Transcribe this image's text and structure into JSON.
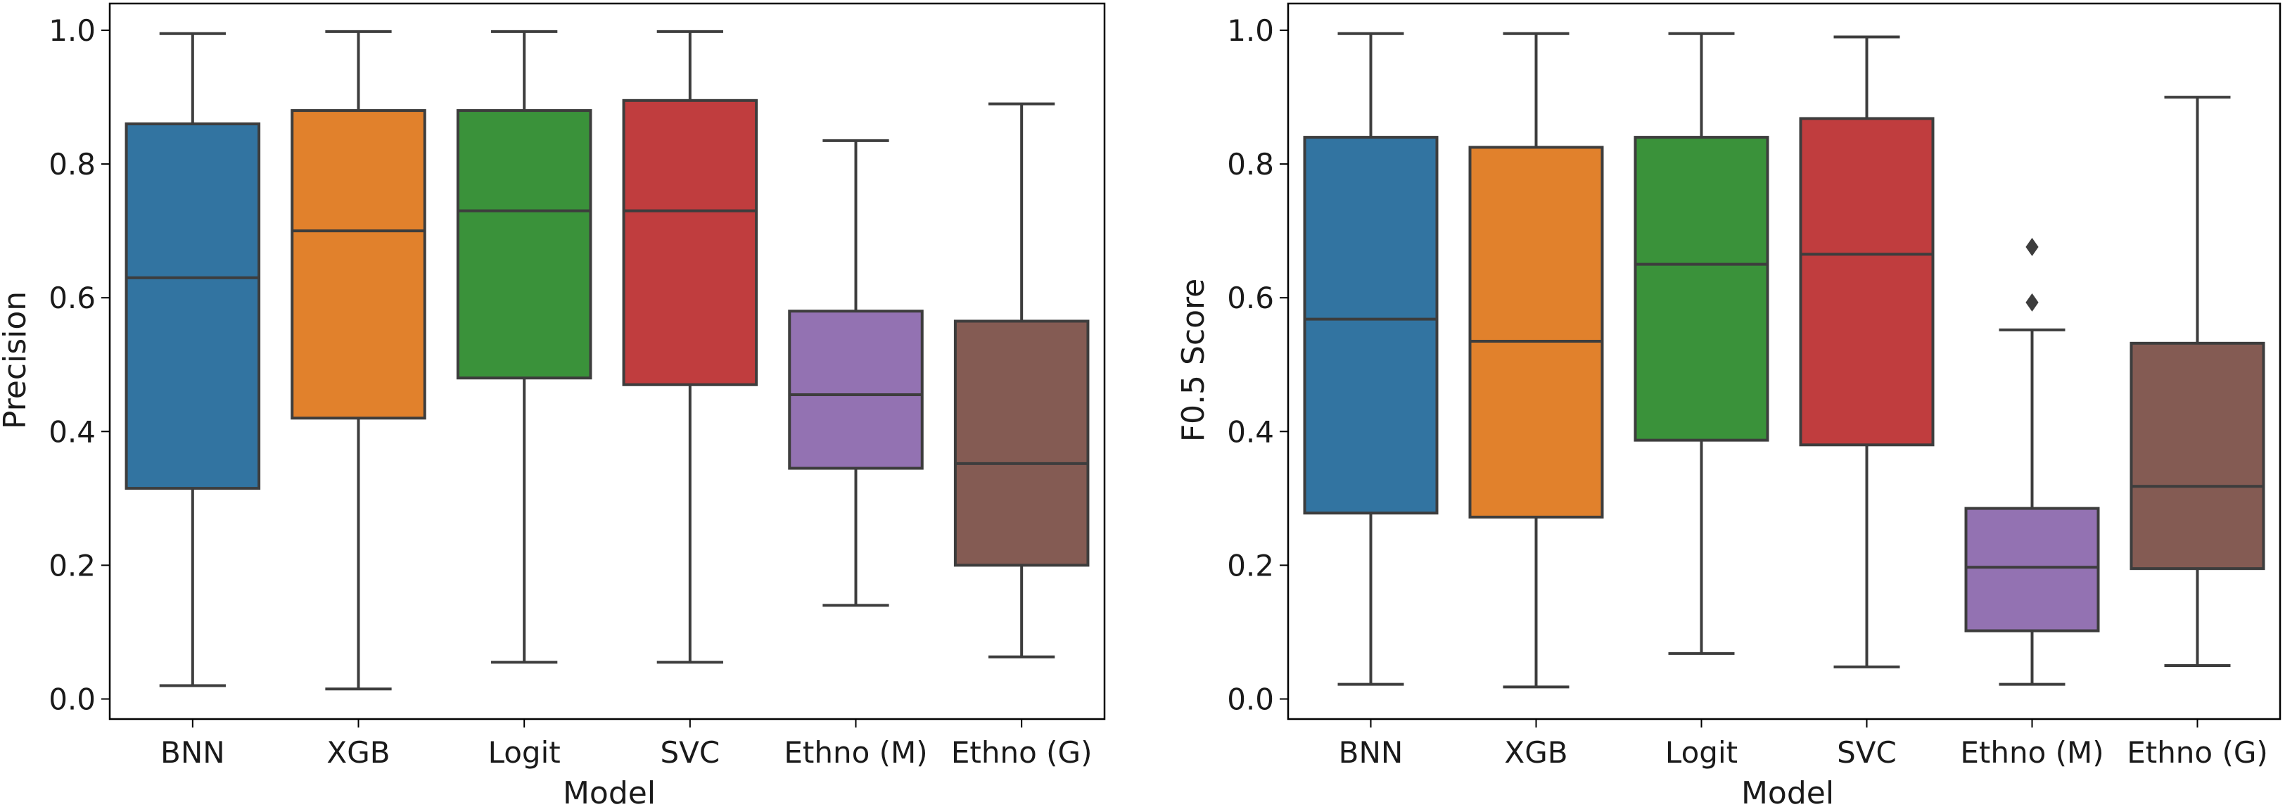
{
  "chart_data": [
    {
      "type": "boxplot",
      "xlabel": "Model",
      "ylabel": "Precision",
      "ylim": [
        -0.03,
        1.04
      ],
      "yticks": [
        "0.0",
        "0.2",
        "0.4",
        "0.6",
        "0.8",
        "1.0"
      ],
      "categories": [
        "BNN",
        "XGB",
        "Logit",
        "SVC",
        "Ethno (M)",
        "Ethno (G)"
      ],
      "colors": [
        "#3274a1",
        "#e1812c",
        "#3a923a",
        "#c03d3e",
        "#9372b2",
        "#845b53"
      ],
      "boxes": [
        {
          "whislo": 0.02,
          "q1": 0.315,
          "med": 0.63,
          "q3": 0.86,
          "whishi": 0.995,
          "fliers": []
        },
        {
          "whislo": 0.015,
          "q1": 0.42,
          "med": 0.7,
          "q3": 0.88,
          "whishi": 0.998,
          "fliers": []
        },
        {
          "whislo": 0.055,
          "q1": 0.48,
          "med": 0.73,
          "q3": 0.88,
          "whishi": 0.998,
          "fliers": []
        },
        {
          "whislo": 0.055,
          "q1": 0.47,
          "med": 0.73,
          "q3": 0.895,
          "whishi": 0.998,
          "fliers": []
        },
        {
          "whislo": 0.14,
          "q1": 0.345,
          "med": 0.455,
          "q3": 0.58,
          "whishi": 0.835,
          "fliers": []
        },
        {
          "whislo": 0.063,
          "q1": 0.2,
          "med": 0.352,
          "q3": 0.565,
          "whishi": 0.89,
          "fliers": []
        }
      ]
    },
    {
      "type": "boxplot",
      "xlabel": "Model",
      "ylabel": "F0.5 Score",
      "ylim": [
        -0.03,
        1.04
      ],
      "yticks": [
        "0.0",
        "0.2",
        "0.4",
        "0.6",
        "0.8",
        "1.0"
      ],
      "categories": [
        "BNN",
        "XGB",
        "Logit",
        "SVC",
        "Ethno (M)",
        "Ethno (G)"
      ],
      "colors": [
        "#3274a1",
        "#e1812c",
        "#3a923a",
        "#c03d3e",
        "#9372b2",
        "#845b53"
      ],
      "boxes": [
        {
          "whislo": 0.022,
          "q1": 0.278,
          "med": 0.568,
          "q3": 0.84,
          "whishi": 0.995,
          "fliers": []
        },
        {
          "whislo": 0.018,
          "q1": 0.272,
          "med": 0.535,
          "q3": 0.825,
          "whishi": 0.995,
          "fliers": []
        },
        {
          "whislo": 0.068,
          "q1": 0.387,
          "med": 0.65,
          "q3": 0.84,
          "whishi": 0.995,
          "fliers": []
        },
        {
          "whislo": 0.048,
          "q1": 0.38,
          "med": 0.665,
          "q3": 0.868,
          "whishi": 0.99,
          "fliers": []
        },
        {
          "whislo": 0.022,
          "q1": 0.102,
          "med": 0.197,
          "q3": 0.285,
          "whishi": 0.552,
          "fliers": [
            0.593,
            0.676
          ]
        },
        {
          "whislo": 0.05,
          "q1": 0.195,
          "med": 0.318,
          "q3": 0.532,
          "whishi": 0.9,
          "fliers": []
        }
      ]
    }
  ]
}
